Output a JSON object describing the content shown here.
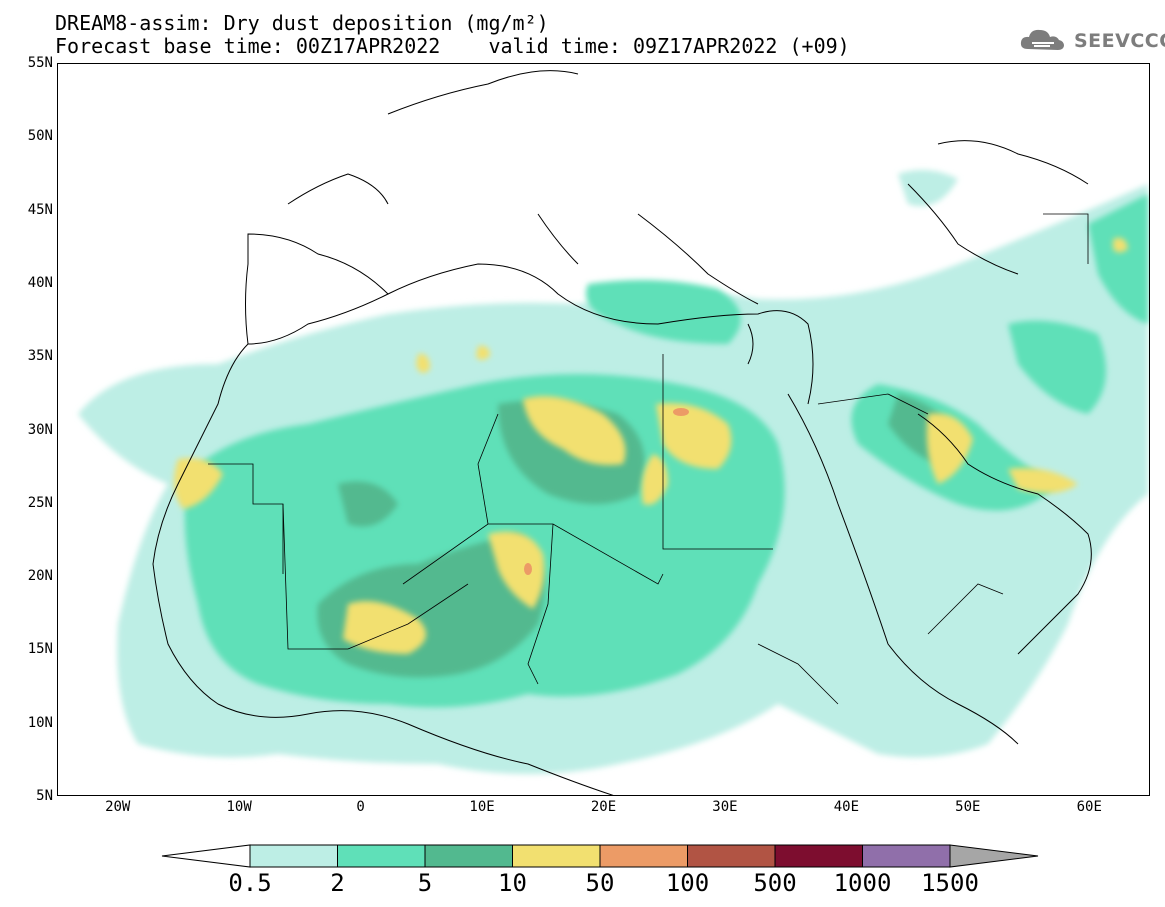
{
  "header": {
    "title_line1": "DREAM8-assim: Dry dust deposition (mg/m²)",
    "title_line2": "Forecast base time: 00Z17APR2022    valid time: 09Z17APR2022 (+09)"
  },
  "logo": {
    "text": "SEEVCCC",
    "icon": "cloud-icon"
  },
  "map": {
    "projection": "lat-lon",
    "lon_range": [
      -25,
      65
    ],
    "lat_range": [
      5,
      55
    ],
    "lat_labels": [
      "55N",
      "50N",
      "45N",
      "40N",
      "35N",
      "30N",
      "25N",
      "20N",
      "15N",
      "10N",
      "5N"
    ],
    "lon_labels": [
      "20W",
      "10W",
      "0",
      "10E",
      "20E",
      "30E",
      "40E",
      "50E",
      "60E"
    ],
    "lat_values": [
      55,
      50,
      45,
      40,
      35,
      30,
      25,
      20,
      15,
      10,
      5
    ],
    "lon_values": [
      -20,
      -10,
      0,
      10,
      20,
      30,
      40,
      50,
      60
    ]
  },
  "colorbar": {
    "labels": [
      "0.5",
      "2",
      "5",
      "10",
      "50",
      "100",
      "500",
      "1000",
      "1500"
    ],
    "colors": [
      "#bdeee5",
      "#5fe0b8",
      "#52b98f",
      "#f2e070",
      "#ec9b66",
      "#b15444",
      "#7d0d2f",
      "#906faa"
    ],
    "under_color": "#ffffff",
    "over_color": "#a6a6a6"
  }
}
